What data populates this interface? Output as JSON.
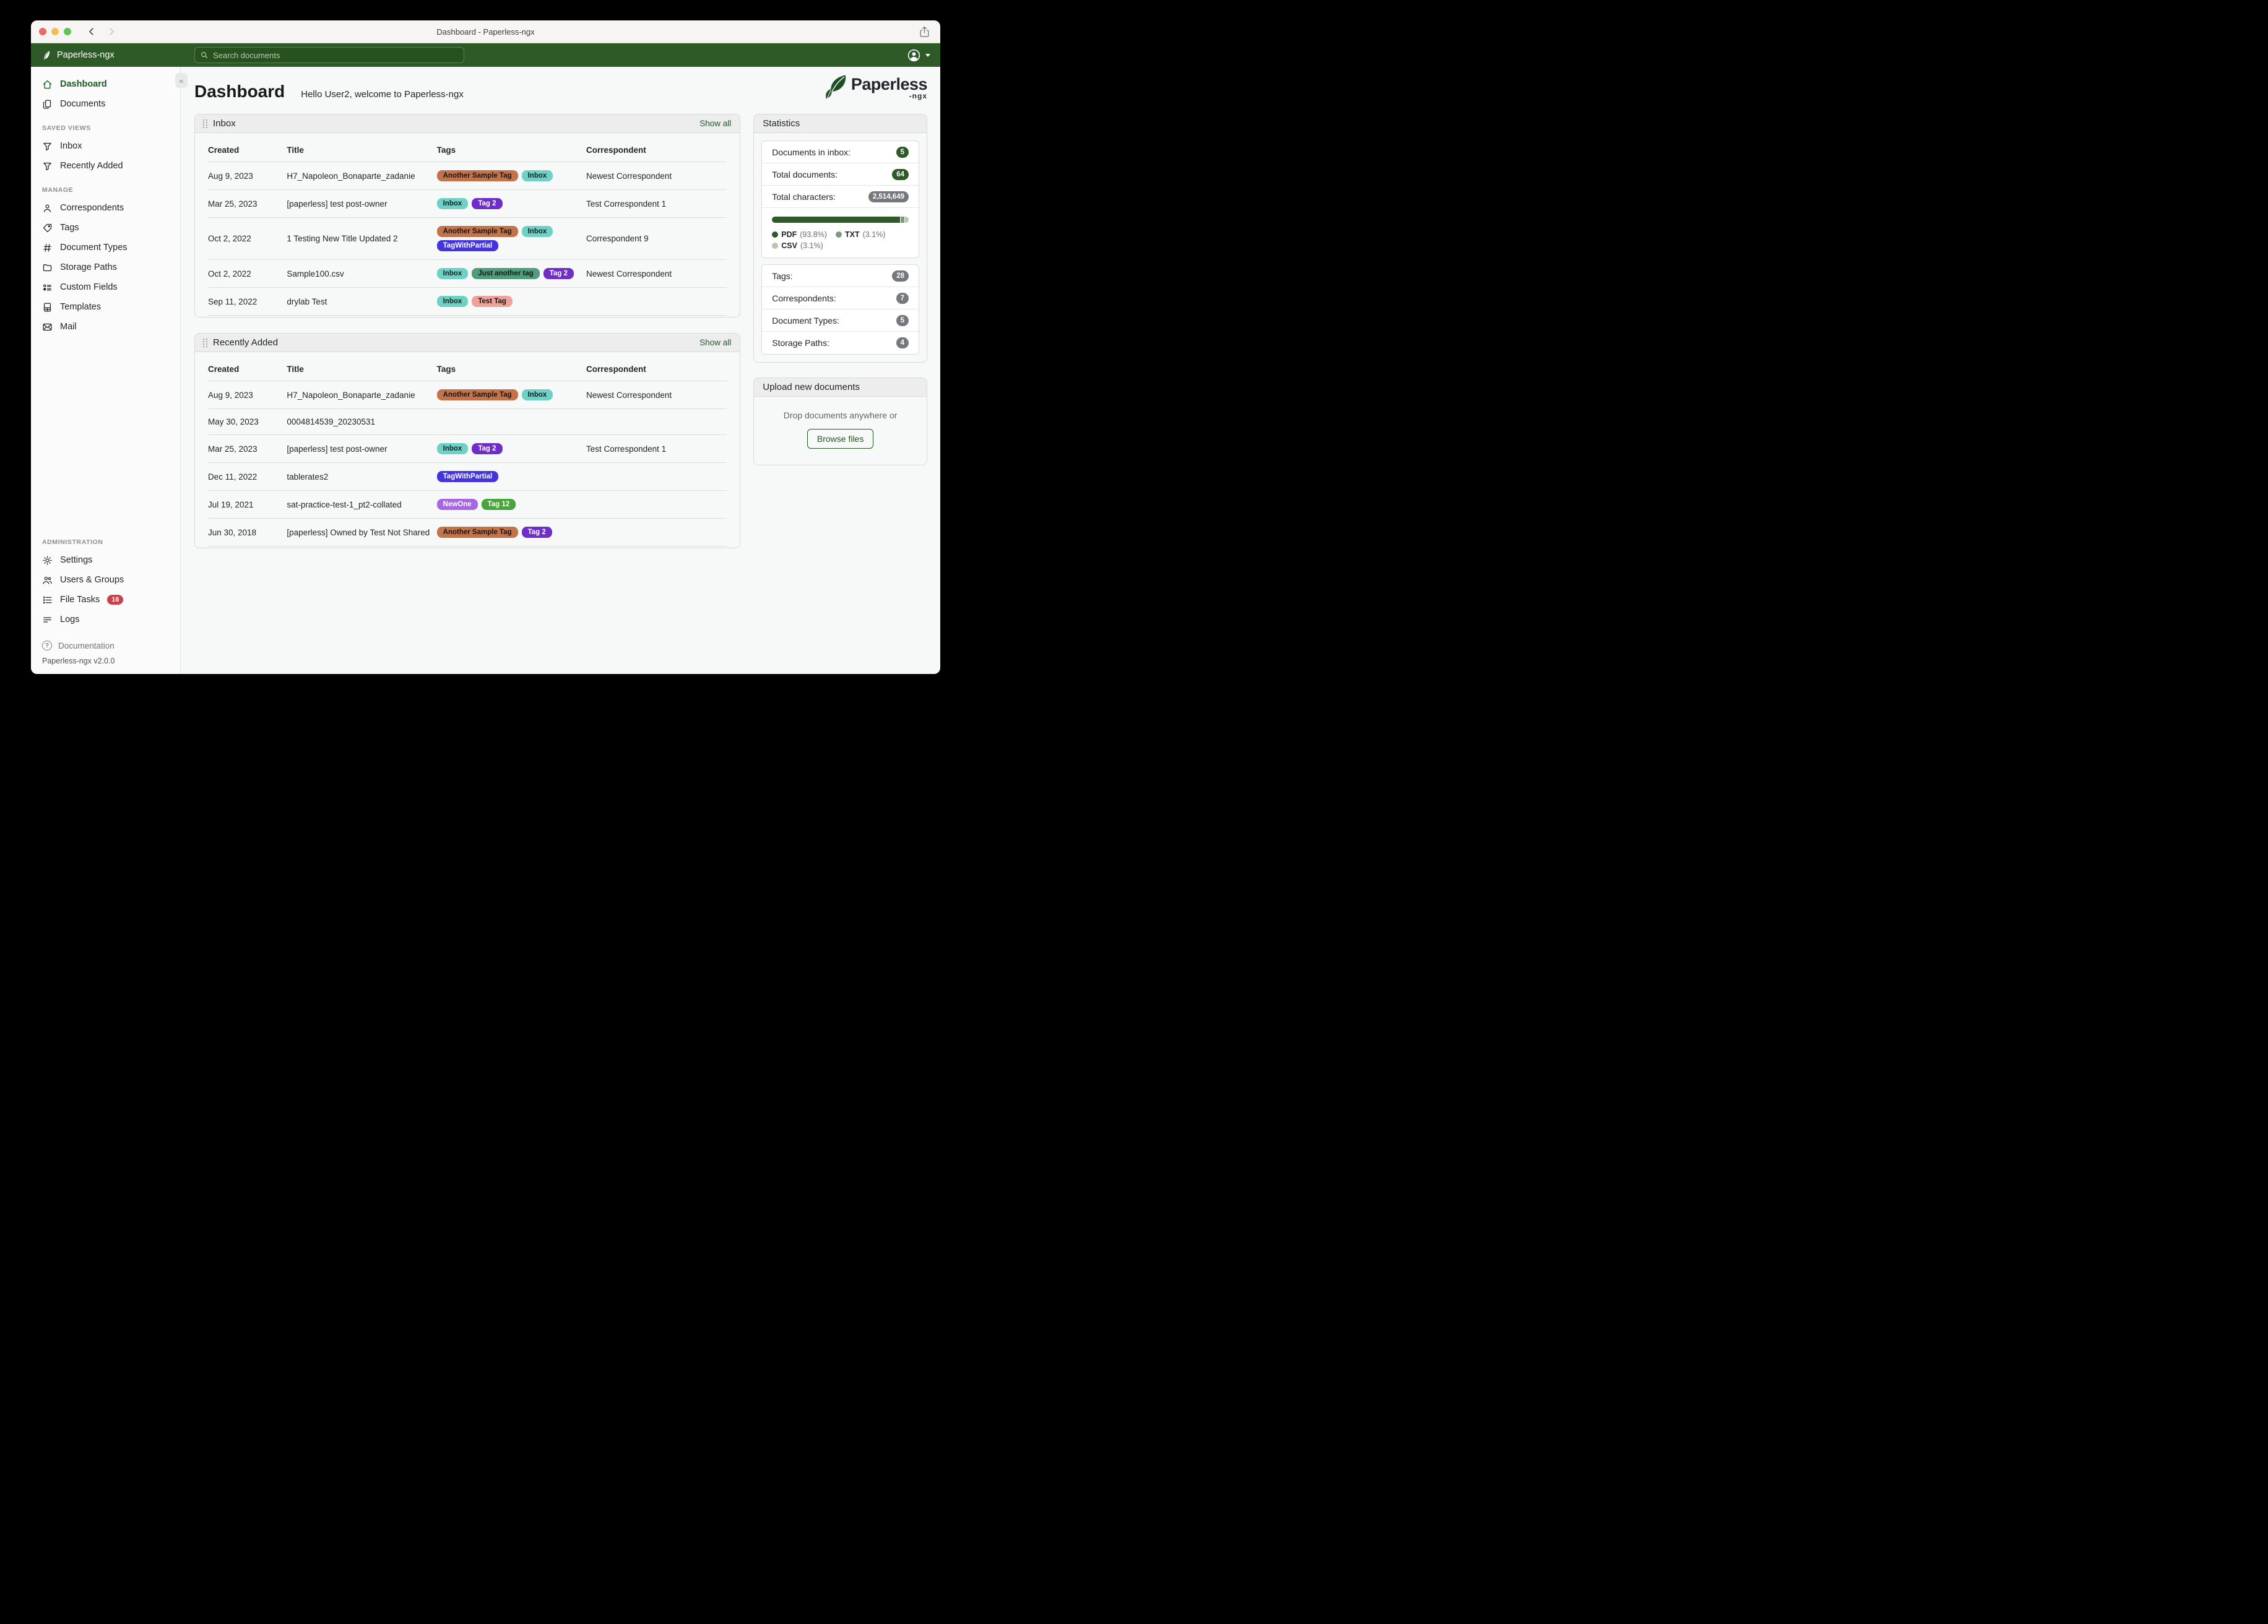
{
  "window": {
    "title": "Dashboard - Paperless-ngx"
  },
  "navbar": {
    "brand": "Paperless-ngx",
    "search_placeholder": "Search documents"
  },
  "sidebar": {
    "primary": [
      {
        "label": "Dashboard",
        "icon": "home",
        "active": true
      },
      {
        "label": "Documents",
        "icon": "documents"
      }
    ],
    "sections": [
      {
        "heading": "SAVED VIEWS",
        "items": [
          {
            "label": "Inbox",
            "icon": "filter"
          },
          {
            "label": "Recently Added",
            "icon": "filter"
          }
        ]
      },
      {
        "heading": "MANAGE",
        "items": [
          {
            "label": "Correspondents",
            "icon": "person"
          },
          {
            "label": "Tags",
            "icon": "tag"
          },
          {
            "label": "Document Types",
            "icon": "hash"
          },
          {
            "label": "Storage Paths",
            "icon": "folder"
          },
          {
            "label": "Custom Fields",
            "icon": "custom-fields"
          },
          {
            "label": "Templates",
            "icon": "template"
          },
          {
            "label": "Mail",
            "icon": "mail"
          }
        ]
      },
      {
        "heading": "ADMINISTRATION",
        "push": true,
        "items": [
          {
            "label": "Settings",
            "icon": "gear"
          },
          {
            "label": "Users & Groups",
            "icon": "users"
          },
          {
            "label": "File Tasks",
            "icon": "tasks",
            "badge": "16"
          },
          {
            "label": "Logs",
            "icon": "logs"
          }
        ]
      }
    ],
    "footer": {
      "documentation": "Documentation",
      "version": "Paperless-ngx v2.0.0"
    }
  },
  "header": {
    "title": "Dashboard",
    "subtitle": "Hello User2, welcome to Paperless-ngx"
  },
  "logo": {
    "name": "Paperless",
    "suffix": "-ngx"
  },
  "widgets": [
    {
      "title": "Inbox",
      "show_all": "Show all",
      "columns": [
        "Created",
        "Title",
        "Tags",
        "Correspondent"
      ],
      "col_widths": [
        "15.2%",
        "28.9%",
        "28.8%",
        "27.1%"
      ],
      "rows": [
        {
          "created": "Aug 9, 2023",
          "title": "H7_Napoleon_Bonaparte_zadanie",
          "tags": [
            {
              "label": "Another Sample Tag",
              "bg": "#c3734a",
              "fg": "#161616"
            },
            {
              "label": "Inbox",
              "bg": "#6fd1c5",
              "fg": "#10211e"
            }
          ],
          "correspondent": "Newest Correspondent"
        },
        {
          "created": "Mar 25, 2023",
          "title": "[paperless] test post-owner",
          "tags": [
            {
              "label": "Inbox",
              "bg": "#6fd1c5",
              "fg": "#10211e"
            },
            {
              "label": "Tag 2",
              "bg": "#6e2ec7",
              "fg": "#ffffff"
            }
          ],
          "correspondent": "Test Correspondent 1"
        },
        {
          "created": "Oct 2, 2022",
          "title": "1 Testing New Title Updated 2",
          "tags": [
            {
              "label": "Another Sample Tag",
              "bg": "#c3734a",
              "fg": "#161616"
            },
            {
              "label": "Inbox",
              "bg": "#6fd1c5",
              "fg": "#10211e"
            },
            {
              "label": "TagWithPartial",
              "bg": "#4434de",
              "fg": "#ffffff"
            }
          ],
          "correspondent": "Correspondent 9"
        },
        {
          "created": "Oct 2, 2022",
          "title": "Sample100.csv",
          "tags": [
            {
              "label": "Inbox",
              "bg": "#6fd1c5",
              "fg": "#10211e"
            },
            {
              "label": "Just another tag",
              "bg": "#4f9d7c",
              "fg": "#0d1a13"
            },
            {
              "label": "Tag 2",
              "bg": "#6e2ec7",
              "fg": "#ffffff"
            }
          ],
          "correspondent": "Newest Correspondent"
        },
        {
          "created": "Sep 11, 2022",
          "title": "drylab Test",
          "tags": [
            {
              "label": "Inbox",
              "bg": "#6fd1c5",
              "fg": "#10211e"
            },
            {
              "label": "Test Tag",
              "bg": "#efa19c",
              "fg": "#1c1212"
            }
          ],
          "correspondent": ""
        }
      ]
    },
    {
      "title": "Recently Added",
      "show_all": "Show all",
      "columns": [
        "Created",
        "Title",
        "Tags",
        "Correspondent"
      ],
      "col_widths": [
        "15.2%",
        "28.9%",
        "28.8%",
        "27.1%"
      ],
      "rows": [
        {
          "created": "Aug 9, 2023",
          "title": "H7_Napoleon_Bonaparte_zadanie",
          "tags": [
            {
              "label": "Another Sample Tag",
              "bg": "#c3734a",
              "fg": "#161616"
            },
            {
              "label": "Inbox",
              "bg": "#6fd1c5",
              "fg": "#10211e"
            }
          ],
          "correspondent": "Newest Correspondent"
        },
        {
          "created": "May 30, 2023",
          "title": "0004814539_20230531",
          "tags": [],
          "correspondent": ""
        },
        {
          "created": "Mar 25, 2023",
          "title": "[paperless] test post-owner",
          "tags": [
            {
              "label": "Inbox",
              "bg": "#6fd1c5",
              "fg": "#10211e"
            },
            {
              "label": "Tag 2",
              "bg": "#6e2ec7",
              "fg": "#ffffff"
            }
          ],
          "correspondent": "Test Correspondent 1"
        },
        {
          "created": "Dec 11, 2022",
          "title": "tablerates2",
          "tags": [
            {
              "label": "TagWithPartial",
              "bg": "#4434de",
              "fg": "#ffffff"
            }
          ],
          "correspondent": ""
        },
        {
          "created": "Jul 19, 2021",
          "title": "sat-practice-test-1_pt2-collated",
          "tags": [
            {
              "label": "NewOne",
              "bg": "#a766e4",
              "fg": "#ffffff"
            },
            {
              "label": "Tag 12",
              "bg": "#49a53b",
              "fg": "#ffffff"
            }
          ],
          "correspondent": ""
        },
        {
          "created": "Jun 30, 2018",
          "title": "[paperless] Owned by Test Not Shared",
          "tags": [
            {
              "label": "Another Sample Tag",
              "bg": "#c3734a",
              "fg": "#161616"
            },
            {
              "label": "Tag 2",
              "bg": "#6e2ec7",
              "fg": "#ffffff"
            }
          ],
          "correspondent": ""
        }
      ]
    }
  ],
  "statistics": {
    "title": "Statistics",
    "summary": [
      {
        "label": "Documents in inbox:",
        "value": "5",
        "style": "green"
      },
      {
        "label": "Total documents:",
        "value": "64",
        "style": "green"
      },
      {
        "label": "Total characters:",
        "value": "2,514,649",
        "style": "gray"
      }
    ],
    "chart_data": {
      "type": "bar",
      "title": "Document file type distribution",
      "categories": [
        "PDF",
        "TXT",
        "CSV"
      ],
      "values": [
        93.8,
        3.1,
        3.1
      ],
      "unit": "%",
      "colors": [
        "#2d5a27",
        "#7f987a",
        "#b8c7b1"
      ],
      "labels": [
        "PDF (93.8%)",
        "TXT (3.1%)",
        "CSV (3.1%)"
      ]
    },
    "counts": [
      {
        "label": "Tags:",
        "value": "28",
        "style": "gray"
      },
      {
        "label": "Correspondents:",
        "value": "7",
        "style": "gray"
      },
      {
        "label": "Document Types:",
        "value": "5",
        "style": "gray"
      },
      {
        "label": "Storage Paths:",
        "value": "4",
        "style": "gray"
      }
    ]
  },
  "upload": {
    "title": "Upload new documents",
    "hint": "Drop documents anywhere or",
    "button": "Browse files"
  },
  "colors": {
    "accent_green": "#2d5a27",
    "link_green": "#1d5b24",
    "badge_gray": "#75787d",
    "badge_red": "#ca4247"
  }
}
